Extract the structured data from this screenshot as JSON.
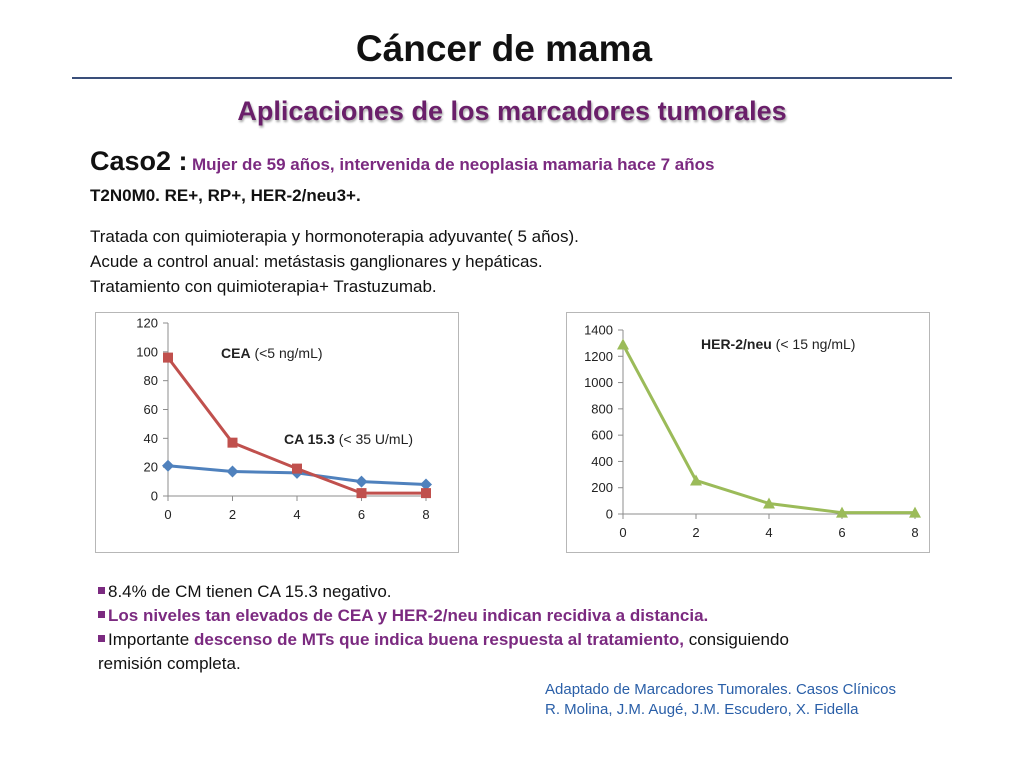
{
  "slide": {
    "title": "Cáncer de mama",
    "subtitle": "Aplicaciones de los marcadores tumorales",
    "case": {
      "label": "Caso2 :",
      "description": "Mujer de 59 años, intervenida de neoplasia mamaria hace 7 años",
      "line2": "T2N0M0. RE+, RP+, HER-2/neu3+."
    },
    "history": [
      "Tratada con quimioterapia  y hormonoterapia adyuvante( 5 años).",
      "Acude a control anual: metástasis ganglionares y hepáticas.",
      "Tratamiento con quimioterapia+ Trastuzumab."
    ],
    "bullets": {
      "b1": "8.4% de CM tienen CA 15.3 negativo.",
      "b2": "Los niveles  tan elevados de CEA y HER-2/neu  indican recidiva a distancia.",
      "b3_plain1": "Importante ",
      "b3_bold": "descenso de MTs que indica buena respuesta al tratamiento,",
      "b3_plain2": " consiguiendo",
      "b3_line2": "remisión completa."
    },
    "source": {
      "line1": "Adaptado de Marcadores Tumorales. Casos Clínicos",
      "line2": "R. Molina, J.M. Augé, J.M. Escudero, X. Fidella"
    }
  },
  "chart_data": [
    {
      "type": "line",
      "x": [
        0,
        2,
        4,
        6,
        8
      ],
      "xlim": [
        0,
        8
      ],
      "ylim": [
        0,
        120
      ],
      "yticks": [
        0,
        20,
        40,
        60,
        80,
        100,
        120
      ],
      "xticks": [
        0,
        2,
        4,
        6,
        8
      ],
      "series": [
        {
          "name": "CA 15.3",
          "marker": "diamond",
          "color": "#4f81bd",
          "values": [
            21,
            17,
            16,
            10,
            8
          ]
        },
        {
          "name": "CEA",
          "marker": "square",
          "color": "#c0504d",
          "values": [
            96,
            37,
            19,
            2,
            2
          ]
        }
      ],
      "annotations": [
        {
          "series": "CEA",
          "bold": "CEA",
          "rest": " (<5 ng/mL)"
        },
        {
          "series": "CA 15.3",
          "bold": "CA 15.3",
          "rest": "  (< 35 U/mL)"
        }
      ]
    },
    {
      "type": "line",
      "x": [
        0,
        2,
        4,
        6,
        8
      ],
      "xlim": [
        0,
        8
      ],
      "ylim": [
        0,
        1400
      ],
      "yticks": [
        0,
        200,
        400,
        600,
        800,
        1000,
        1200,
        1400
      ],
      "xticks": [
        0,
        2,
        4,
        6,
        8
      ],
      "series": [
        {
          "name": "HER-2/neu",
          "marker": "triangle",
          "color": "#9bbb59",
          "values": [
            1290,
            255,
            80,
            10,
            10
          ]
        }
      ],
      "annotations": [
        {
          "series": "HER-2/neu",
          "bold": "HER-2/neu",
          "rest": " (< 15 ng/mL)"
        }
      ]
    }
  ]
}
